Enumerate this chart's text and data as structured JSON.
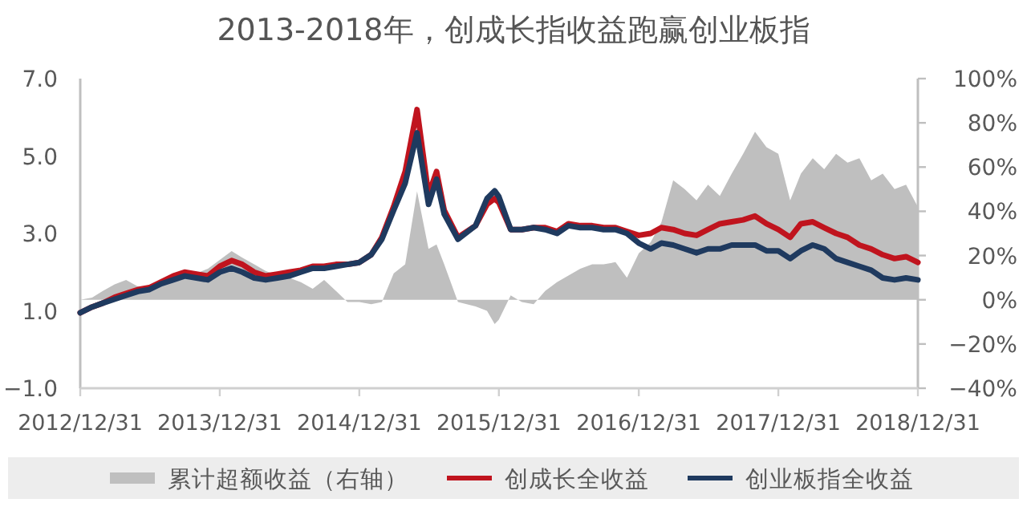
{
  "chart_data": {
    "type": "line",
    "title": "2013-2018年，创成长指收益跑赢创业板指",
    "x": [
      "2012-12-31",
      "2013-01-31",
      "2013-02-28",
      "2013-03-31",
      "2013-04-30",
      "2013-05-31",
      "2013-06-30",
      "2013-07-31",
      "2013-08-31",
      "2013-09-30",
      "2013-10-31",
      "2013-11-30",
      "2013-12-31",
      "2014-01-31",
      "2014-02-28",
      "2014-03-31",
      "2014-04-30",
      "2014-05-31",
      "2014-06-30",
      "2014-07-31",
      "2014-08-31",
      "2014-09-30",
      "2014-10-31",
      "2014-11-30",
      "2014-12-31",
      "2015-01-31",
      "2015-02-28",
      "2015-03-31",
      "2015-04-30",
      "2015-05-31",
      "2015-06-30",
      "2015-07-21",
      "2015-08-10",
      "2015-09-15",
      "2015-10-31",
      "2015-11-30",
      "2015-12-20",
      "2015-12-31",
      "2016-01-31",
      "2016-02-29",
      "2016-03-31",
      "2016-04-30",
      "2016-05-31",
      "2016-06-30",
      "2016-07-31",
      "2016-08-31",
      "2016-09-30",
      "2016-10-31",
      "2016-11-30",
      "2016-12-31",
      "2017-01-31",
      "2017-02-28",
      "2017-03-31",
      "2017-04-30",
      "2017-05-31",
      "2017-06-30",
      "2017-07-31",
      "2017-08-31",
      "2017-09-30",
      "2017-10-31",
      "2017-11-30",
      "2017-12-31",
      "2018-01-31",
      "2018-02-28",
      "2018-03-31",
      "2018-04-30",
      "2018-05-31",
      "2018-06-30",
      "2018-07-31",
      "2018-08-31",
      "2018-09-30",
      "2018-10-31",
      "2018-11-30",
      "2018-12-31"
    ],
    "series": [
      {
        "name": "累计超额收益（右轴）",
        "type": "area",
        "axis": "y2",
        "color": "#bfbfbf",
        "values": [
          0,
          1,
          4,
          7,
          9,
          6,
          5,
          7,
          9,
          11,
          12,
          14,
          18,
          22,
          19,
          16,
          13,
          11,
          10,
          8,
          5,
          9,
          4,
          -1,
          -1,
          -2,
          -1,
          12,
          16,
          49,
          23,
          25,
          16,
          -1,
          -3,
          -5,
          -11,
          -9,
          2,
          -1,
          -2,
          4,
          8,
          11,
          14,
          16,
          16,
          17,
          10,
          21,
          26,
          35,
          54,
          50,
          45,
          52,
          47,
          57,
          66,
          76,
          69,
          66,
          45,
          57,
          64,
          59,
          66,
          62,
          64,
          54,
          57,
          50,
          52,
          42
        ]
      },
      {
        "name": "创成长全收益",
        "color": "#c0141e",
        "values": [
          0.95,
          1.1,
          1.2,
          1.35,
          1.45,
          1.55,
          1.6,
          1.75,
          1.9,
          2.0,
          1.95,
          1.9,
          2.15,
          2.3,
          2.2,
          2.0,
          1.9,
          1.95,
          2.0,
          2.05,
          2.15,
          2.15,
          2.2,
          2.2,
          2.25,
          2.45,
          2.9,
          3.7,
          4.6,
          6.2,
          4.0,
          4.6,
          3.6,
          2.9,
          3.2,
          3.75,
          3.9,
          3.8,
          3.1,
          3.1,
          3.15,
          3.15,
          3.05,
          3.25,
          3.2,
          3.2,
          3.15,
          3.15,
          3.05,
          2.95,
          3.0,
          3.15,
          3.1,
          3.0,
          2.95,
          3.1,
          3.25,
          3.3,
          3.35,
          3.45,
          3.25,
          3.1,
          2.9,
          3.25,
          3.3,
          3.15,
          3.0,
          2.9,
          2.7,
          2.6,
          2.45,
          2.35,
          2.4,
          2.25
        ]
      },
      {
        "name": "创业板指全收益",
        "color": "#1f3a5f",
        "values": [
          0.95,
          1.1,
          1.2,
          1.3,
          1.4,
          1.5,
          1.55,
          1.7,
          1.8,
          1.9,
          1.85,
          1.8,
          2.0,
          2.1,
          2.0,
          1.85,
          1.8,
          1.85,
          1.9,
          2.0,
          2.1,
          2.1,
          2.15,
          2.2,
          2.25,
          2.45,
          2.85,
          3.6,
          4.3,
          5.6,
          3.75,
          4.4,
          3.5,
          2.85,
          3.2,
          3.9,
          4.1,
          3.95,
          3.1,
          3.1,
          3.15,
          3.1,
          3.0,
          3.2,
          3.15,
          3.15,
          3.1,
          3.1,
          3.0,
          2.75,
          2.6,
          2.75,
          2.7,
          2.6,
          2.5,
          2.6,
          2.6,
          2.7,
          2.7,
          2.7,
          2.55,
          2.55,
          2.35,
          2.55,
          2.7,
          2.6,
          2.35,
          2.25,
          2.15,
          2.05,
          1.85,
          1.8,
          1.85,
          1.8
        ]
      }
    ],
    "xlim": [
      "2012-12-31",
      "2018-12-31"
    ],
    "xticks": [
      {
        "value": "2012-12-31",
        "label": "2012/12/31"
      },
      {
        "value": "2013-12-31",
        "label": "2013/12/31"
      },
      {
        "value": "2014-12-31",
        "label": "2014/12/31"
      },
      {
        "value": "2015-12-31",
        "label": "2015/12/31"
      },
      {
        "value": "2016-12-31",
        "label": "2016/12/31"
      },
      {
        "value": "2017-12-31",
        "label": "2017/12/31"
      },
      {
        "value": "2018-12-31",
        "label": "2018/12/31"
      }
    ],
    "ylim": [
      -1,
      7
    ],
    "yticks": [
      {
        "value": -1,
        "label": "−1.0"
      },
      {
        "value": 1,
        "label": "1.0"
      },
      {
        "value": 3,
        "label": "3.0"
      },
      {
        "value": 5,
        "label": "5.0"
      },
      {
        "value": 7,
        "label": "7.0"
      }
    ],
    "y2lim": [
      -40,
      100
    ],
    "y2ticks": [
      {
        "value": -40,
        "label": "−40%"
      },
      {
        "value": -20,
        "label": "−20%"
      },
      {
        "value": 0,
        "label": "0%"
      },
      {
        "value": 20,
        "label": "20%"
      },
      {
        "value": 40,
        "label": "40%"
      },
      {
        "value": 60,
        "label": "60%"
      },
      {
        "value": 80,
        "label": "80%"
      },
      {
        "value": 100,
        "label": "100%"
      }
    ],
    "legend": "bottom",
    "grid": false,
    "line_style": "solid",
    "marker": "none"
  }
}
